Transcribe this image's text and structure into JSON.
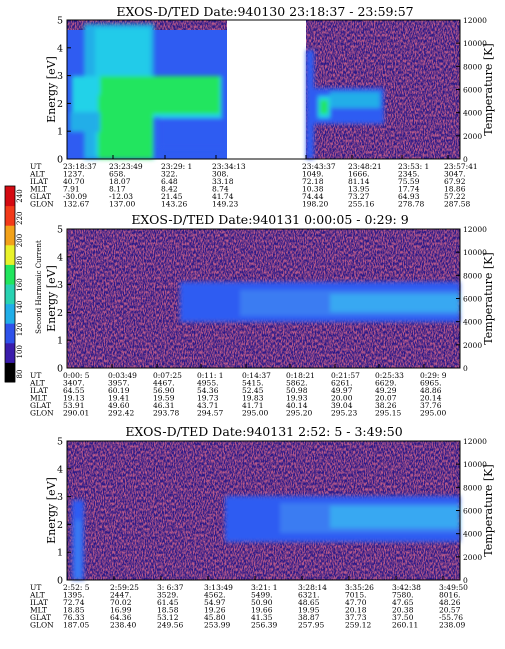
{
  "colors": {
    "background": "#2a1a88",
    "noise_speckle": "#7a1a3a",
    "blue_band": "#2f5cf2",
    "light_band": "#38a8f2",
    "cyan": "#21d2e8",
    "green": "#22e55e",
    "gap": "#ffffff"
  },
  "colorbar": {
    "label": "Second Harmonic Current",
    "ticks": [
      "240",
      "220",
      "200",
      "180",
      "160",
      "140",
      "120",
      "100",
      "80"
    ],
    "colors": [
      "#000000",
      "#3a1cab",
      "#2f52ea",
      "#21aee8",
      "#29d2b2",
      "#22e55e",
      "#e9f22a",
      "#f2a21a",
      "#f23a1a",
      "#d40a12"
    ]
  },
  "chart_data": [
    {
      "type": "heatmap",
      "title": "EXOS-D/TED   Date:940130   23:18:37 - 23:59:57",
      "ylabel": "Energy [eV]",
      "ylabel_right": "Temperature [K]",
      "ylim": [
        0,
        5
      ],
      "ylim_right": [
        0,
        12000
      ],
      "yticks": [
        "0",
        "1",
        "2",
        "3",
        "4",
        "5"
      ],
      "yticks_right": [
        "0",
        "2000",
        "4000",
        "6000",
        "8000",
        "10000",
        "12000"
      ],
      "data_gap": "white gap between 23:34:13 and 23:43:37",
      "orbit_table": {
        "labels": [
          "UT",
          "ALT",
          "ILAT",
          "MLT",
          "GLAT",
          "GLON"
        ],
        "columns": [
          [
            "23:18:37",
            "1237.",
            "40.70",
            "7.91",
            "-30.09",
            "132.67"
          ],
          [
            "23:23:49",
            "658.",
            "18.07",
            "8.17",
            "-12.03",
            "137.00"
          ],
          [
            "23:29: 1",
            "322.",
            "6.48",
            "8.42",
            "21.45",
            "143.26"
          ],
          [
            "23:34:13",
            "308.",
            "33.18",
            "8.74",
            "41.74",
            "149.23"
          ],
          [
            "23:43:37",
            "1049.",
            "72.18",
            "10.38",
            "74.44",
            "198.20"
          ],
          [
            "23:48:21",
            "1666.",
            "81.14",
            "13.95",
            "73.27",
            "255.16"
          ],
          [
            "23:53: 1",
            "2345.",
            "75.59",
            "17.74",
            "64.93",
            "278.78"
          ],
          [
            "23:57:41",
            "3047.",
            "67.92",
            "18.86",
            "57.22",
            "287.58"
          ]
        ]
      }
    },
    {
      "type": "heatmap",
      "title": "EXOS-D/TED   Date:940131   0:00:05 - 0:29: 9",
      "ylabel": "Energy [eV]",
      "ylabel_right": "Temperature [K]",
      "ylim": [
        0,
        5
      ],
      "ylim_right": [
        0,
        12000
      ],
      "yticks": [
        "0",
        "1",
        "2",
        "3",
        "4",
        "5"
      ],
      "yticks_right": [
        "0",
        "2000",
        "4000",
        "6000",
        "8000",
        "10000",
        "12000"
      ],
      "orbit_table": {
        "labels": [
          "UT",
          "ALT",
          "ILAT",
          "MLT",
          "GLAT",
          "GLON"
        ],
        "columns": [
          [
            "0:00: 5",
            "3407.",
            "64.55",
            "19.13",
            "53.91",
            "290.01"
          ],
          [
            "0:03:49",
            "3957.",
            "60.19",
            "19.41",
            "49.60",
            "292.42"
          ],
          [
            "0:07:25",
            "4467.",
            "56.90",
            "19.59",
            "46.31",
            "293.78"
          ],
          [
            "0:11: 1",
            "4955.",
            "54.36",
            "19.73",
            "43.71",
            "294.57"
          ],
          [
            "0:14:37",
            "5415.",
            "52.45",
            "19.83",
            "41.71",
            "295.00"
          ],
          [
            "0:18:21",
            "5862.",
            "50.98",
            "19.93",
            "40.14",
            "295.20"
          ],
          [
            "0:21:57",
            "6261.",
            "49.97",
            "20.00",
            "39.04",
            "295.23"
          ],
          [
            "0:25:33",
            "6629.",
            "49.29",
            "20.07",
            "38.26",
            "295.15"
          ],
          [
            "0:29: 9",
            "6965.",
            "48.86",
            "20.14",
            "37.76",
            "295.00"
          ]
        ]
      }
    },
    {
      "type": "heatmap",
      "title": "EXOS-D/TED   Date:940131   2:52: 5 - 3:49:50",
      "ylabel": "Energy [eV]",
      "ylabel_right": "Temperature [K]",
      "ylim": [
        0,
        5
      ],
      "ylim_right": [
        0,
        12000
      ],
      "yticks": [
        "0",
        "1",
        "2",
        "3",
        "4",
        "5"
      ],
      "yticks_right": [
        "0",
        "2000",
        "4000",
        "6000",
        "8000",
        "10000",
        "12000"
      ],
      "orbit_table": {
        "labels": [
          "UT",
          "ALT",
          "ILAT",
          "MLT",
          "GLAT",
          "GLON"
        ],
        "columns": [
          [
            "2:52: 5",
            "1395.",
            "72.74",
            "18.85",
            "76.33",
            "187.05"
          ],
          [
            "2:59:25",
            "2447.",
            "70.02",
            "16.99",
            "64.36",
            "238.40"
          ],
          [
            "3: 6:37",
            "3529.",
            "61.45",
            "18.58",
            "53.12",
            "249.56"
          ],
          [
            "3:13:49",
            "4562.",
            "54.97",
            "19.26",
            "45.80",
            "253.99"
          ],
          [
            "3:21: 1",
            "5499.",
            "50.90",
            "19.66",
            "41.35",
            "256.39"
          ],
          [
            "3:28:14",
            "6321.",
            "48.65",
            "19.95",
            "38.87",
            "257.95"
          ],
          [
            "3:35:26",
            "7015.",
            "47.70",
            "20.18",
            "37.73",
            "259.12"
          ],
          [
            "3:42:38",
            "7580.",
            "47.65",
            "20.38",
            "37.50",
            "260.11"
          ],
          [
            "3:49:50",
            "8016.",
            "48.26",
            "20.57",
            "-55.76",
            "238.09"
          ]
        ]
      }
    }
  ]
}
